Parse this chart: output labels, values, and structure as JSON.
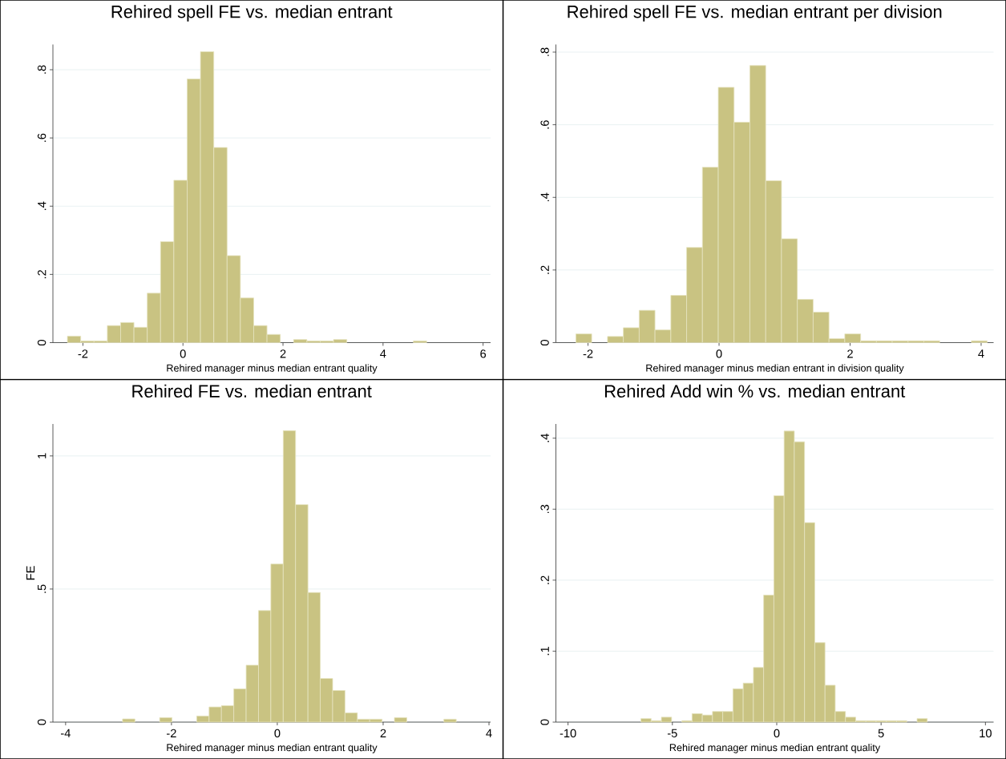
{
  "chart_data": [
    {
      "type": "histogram",
      "title": "Rehired spell FE vs. median entrant",
      "xlabel": "Rehired manager minus median entrant quality",
      "color": "#c9c382",
      "grid": "y",
      "bins": [
        -2.31,
        -2.044,
        -1.778,
        -1.512,
        -1.246,
        -0.98,
        -0.714,
        -0.448,
        -0.182,
        0.084,
        0.35,
        0.616,
        0.882,
        1.148,
        1.414,
        1.68,
        1.946,
        2.212,
        2.478,
        2.744,
        3.01,
        3.276,
        3.542,
        3.808,
        4.074,
        4.34,
        4.606,
        4.872
      ],
      "values": [
        0.019,
        0.005,
        0.005,
        0.05,
        0.059,
        0.045,
        0.145,
        0.296,
        0.476,
        0.773,
        0.853,
        0.572,
        0.255,
        0.131,
        0.05,
        0.024,
        0,
        0.009,
        0.005,
        0.005,
        0.009,
        0,
        0,
        0,
        0,
        0,
        0.005
      ],
      "xlim": [
        -2.6,
        6.15
      ],
      "ylim": [
        0,
        0.874
      ],
      "xticks": [
        -2,
        0,
        2,
        4,
        6
      ],
      "yticks": [
        0,
        {
          "value": 0.2,
          "label": ".2"
        },
        {
          "value": 0.4,
          "label": ".4"
        },
        {
          "value": 0.6,
          "label": ".6"
        },
        {
          "value": 0.8,
          "label": ".8"
        }
      ]
    },
    {
      "type": "histogram",
      "title": "Rehired spell FE vs. median entrant per division",
      "xlabel": "Rehired manager minus median entrant in division quality",
      "color": "#c9c382",
      "grid": "y",
      "bins": [
        -2.185,
        -1.944,
        -1.702,
        -1.461,
        -1.219,
        -0.978,
        -0.736,
        -0.495,
        -0.254,
        -0.012,
        0.229,
        0.47,
        0.712,
        0.953,
        1.195,
        1.436,
        1.678,
        1.919,
        2.161,
        2.402,
        2.643,
        2.885,
        3.126,
        3.368,
        3.609,
        3.851,
        4.092
      ],
      "values": [
        0.024,
        0,
        0.017,
        0.041,
        0.089,
        0.035,
        0.13,
        0.262,
        0.483,
        0.703,
        0.607,
        0.763,
        0.446,
        0.286,
        0.119,
        0.084,
        0.011,
        0.024,
        0.005,
        0.005,
        0.005,
        0.005,
        0.005,
        0,
        0,
        0.005
      ],
      "xlim": [
        -2.49,
        4.19
      ],
      "ylim": [
        0,
        0.821
      ],
      "xticks": [
        -2,
        0,
        2,
        4
      ],
      "yticks": [
        0,
        {
          "value": 0.2,
          "label": ".2"
        },
        {
          "value": 0.4,
          "label": ".4"
        },
        {
          "value": 0.6,
          "label": ".6"
        },
        {
          "value": 0.8,
          "label": ".8"
        }
      ]
    },
    {
      "type": "histogram",
      "title": "Rehired FE vs. median entrant",
      "xlabel": "Rehired manager minus median entrant quality",
      "ylabel": "FE",
      "color": "#c9c382",
      "grid": "y",
      "bins": [
        -2.924,
        -2.69,
        -2.457,
        -2.223,
        -1.99,
        -1.756,
        -1.523,
        -1.289,
        -1.056,
        -0.822,
        -0.589,
        -0.355,
        -0.122,
        0.112,
        0.345,
        0.579,
        0.812,
        1.046,
        1.279,
        1.513,
        1.746,
        1.98,
        2.213,
        2.447,
        2.68,
        2.914,
        3.147,
        3.381
      ],
      "values": [
        0.012,
        0,
        0,
        0.017,
        0,
        0,
        0.023,
        0.057,
        0.062,
        0.125,
        0.214,
        0.419,
        0.594,
        1.095,
        0.817,
        0.487,
        0.164,
        0.119,
        0.035,
        0.011,
        0.011,
        0,
        0.017,
        0,
        0,
        0,
        0.011
      ],
      "xlim": [
        -4.24,
        4.03
      ],
      "ylim": [
        0,
        1.12
      ],
      "xticks": [
        -4,
        -2,
        0,
        2,
        4
      ],
      "yticks": [
        0,
        {
          "value": 0.5,
          "label": ".5"
        },
        1
      ]
    },
    {
      "type": "histogram",
      "title": "Rehired Add win % vs. median entrant",
      "xlabel": "Rehired manager minus median entrant quality",
      "color": "#c9c382",
      "grid": "y",
      "bins": [
        -6.507,
        -6.017,
        -5.527,
        -5.037,
        -4.547,
        -4.057,
        -3.567,
        -3.077,
        -2.587,
        -2.097,
        -1.607,
        -1.117,
        -0.627,
        -0.137,
        0.353,
        0.843,
        1.333,
        1.823,
        2.313,
        2.803,
        3.293,
        3.783,
        4.273,
        4.763,
        5.253,
        5.743,
        6.233,
        6.723,
        7.213
      ],
      "values": [
        0.005,
        0.002,
        0.007,
        0,
        0.002,
        0.012,
        0.01,
        0.015,
        0.015,
        0.047,
        0.055,
        0.077,
        0.179,
        0.319,
        0.41,
        0.395,
        0.281,
        0.112,
        0.052,
        0.015,
        0.007,
        0.002,
        0.002,
        0.002,
        0.002,
        0.002,
        0,
        0.005
      ],
      "xlim": [
        -10.58,
        10.39
      ],
      "ylim": [
        0,
        0.42
      ],
      "xticks": [
        -10,
        -5,
        0,
        5,
        10
      ],
      "yticks": [
        0,
        {
          "value": 0.1,
          "label": ".1"
        },
        {
          "value": 0.2,
          "label": ".2"
        },
        {
          "value": 0.3,
          "label": ".3"
        },
        {
          "value": 0.4,
          "label": ".4"
        }
      ]
    }
  ]
}
